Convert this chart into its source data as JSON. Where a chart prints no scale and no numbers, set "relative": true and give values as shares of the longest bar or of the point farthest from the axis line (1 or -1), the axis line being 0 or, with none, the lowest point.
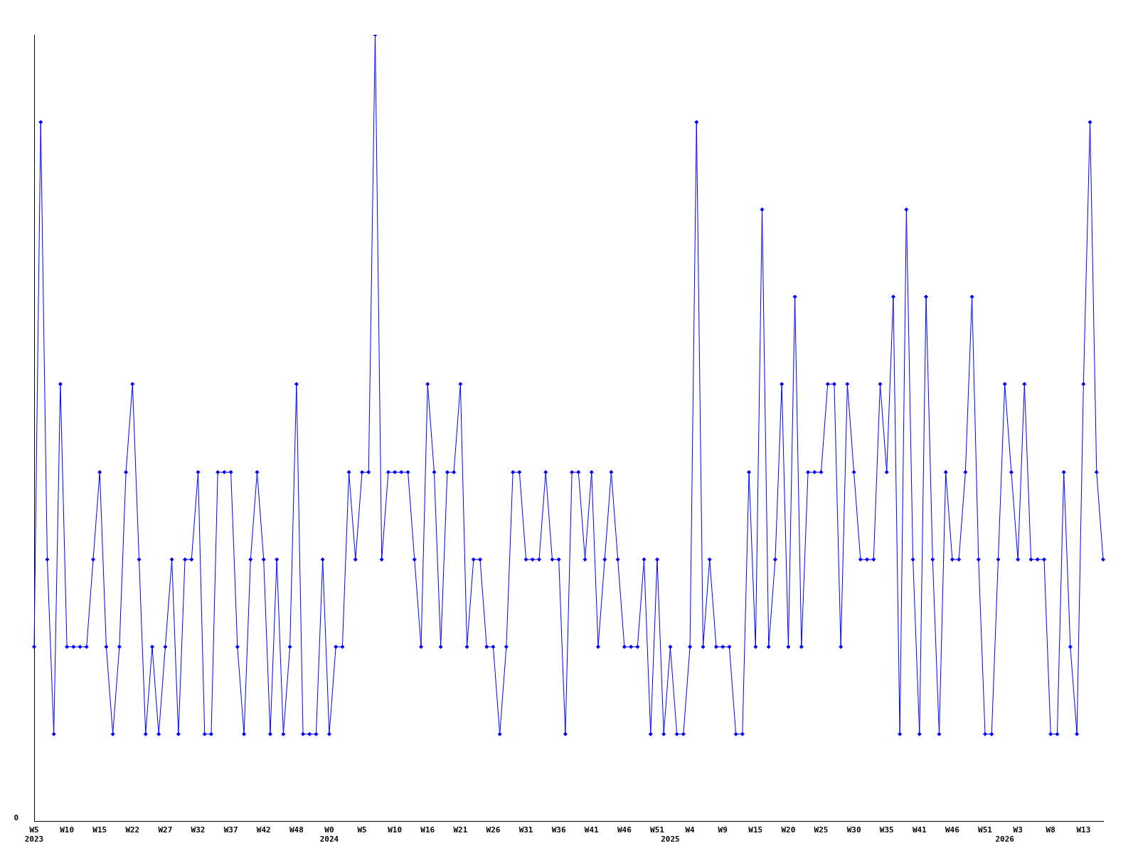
{
  "chart_data": {
    "type": "line",
    "relative": true,
    "color": "#0000ff",
    "marker": "diamond",
    "grid": false,
    "legend": false,
    "categories": [
      "W5\n2023",
      null,
      null,
      null,
      null,
      "W10",
      null,
      null,
      null,
      null,
      "W15",
      null,
      null,
      null,
      null,
      "W22",
      null,
      null,
      null,
      null,
      "W27",
      null,
      null,
      null,
      null,
      "W32",
      null,
      null,
      null,
      null,
      "W37",
      null,
      null,
      null,
      null,
      "W42",
      null,
      null,
      null,
      null,
      "W48",
      null,
      null,
      null,
      null,
      "W0\n2024",
      null,
      null,
      null,
      null,
      "W5",
      null,
      null,
      null,
      null,
      "W10",
      null,
      null,
      null,
      null,
      "W16",
      null,
      null,
      null,
      null,
      "W21",
      null,
      null,
      null,
      null,
      "W26",
      null,
      null,
      null,
      null,
      "W31",
      null,
      null,
      null,
      null,
      "W36",
      null,
      null,
      null,
      null,
      "W41",
      null,
      null,
      null,
      null,
      "W46",
      null,
      null,
      null,
      null,
      "W51",
      null,
      "\n2025",
      null,
      null,
      "W4",
      null,
      null,
      null,
      null,
      "W9",
      null,
      null,
      null,
      null,
      "W15",
      null,
      null,
      null,
      null,
      "W20",
      null,
      null,
      null,
      null,
      "W25",
      null,
      null,
      null,
      null,
      "W30",
      null,
      null,
      null,
      null,
      "W35",
      null,
      null,
      null,
      null,
      "W41",
      null,
      null,
      null,
      null,
      "W46",
      null,
      null,
      null,
      null,
      "W51",
      null,
      null,
      "\n2026",
      null,
      "W3",
      null,
      null,
      null,
      null,
      "W8",
      null,
      null,
      null,
      null,
      "W13",
      null,
      null,
      null
    ],
    "values": [
      0.222,
      0.889,
      0.333,
      0.111,
      0.556,
      0.222,
      0.222,
      0.222,
      0.222,
      0.333,
      0.444,
      0.222,
      0.111,
      0.222,
      0.444,
      0.556,
      0.333,
      0.111,
      0.222,
      0.111,
      0.222,
      0.333,
      0.111,
      0.333,
      0.333,
      0.444,
      0.111,
      0.111,
      0.444,
      0.444,
      0.444,
      0.222,
      0.111,
      0.333,
      0.444,
      0.333,
      0.111,
      0.333,
      0.111,
      0.222,
      0.556,
      0.111,
      0.111,
      0.111,
      0.333,
      0.111,
      0.222,
      0.222,
      0.444,
      0.333,
      0.444,
      0.444,
      1,
      0.333,
      0.444,
      0.444,
      0.444,
      0.444,
      0.333,
      0.222,
      0.556,
      0.444,
      0.222,
      0.444,
      0.444,
      0.556,
      0.222,
      0.333,
      0.333,
      0.222,
      0.222,
      0.111,
      0.222,
      0.444,
      0.444,
      0.333,
      0.333,
      0.333,
      0.444,
      0.333,
      0.333,
      0.111,
      0.444,
      0.444,
      0.333,
      0.444,
      0.222,
      0.333,
      0.444,
      0.333,
      0.222,
      0.222,
      0.222,
      0.333,
      0.111,
      0.333,
      0.111,
      0.222,
      0.111,
      0.111,
      0.222,
      0.889,
      0.222,
      0.333,
      0.222,
      0.222,
      0.222,
      0.111,
      0.111,
      0.444,
      0.222,
      0.778,
      0.222,
      0.333,
      0.556,
      0.222,
      0.667,
      0.222,
      0.444,
      0.444,
      0.444,
      0.556,
      0.556,
      0.222,
      0.556,
      0.444,
      0.333,
      0.333,
      0.333,
      0.556,
      0.444,
      0.667,
      0.111,
      0.778,
      0.333,
      0.111,
      0.667,
      0.333,
      0.111,
      0.444,
      0.333,
      0.333,
      0.444,
      0.667,
      0.333,
      0.111,
      0.111,
      0.333,
      0.556,
      0.444,
      0.333,
      0.556,
      0.333,
      0.333,
      0.333,
      0.111,
      0.111,
      0.444,
      0.222,
      0.111,
      0.556,
      0.889,
      0.444,
      0.333
    ],
    "annotations": [
      "0"
    ]
  }
}
